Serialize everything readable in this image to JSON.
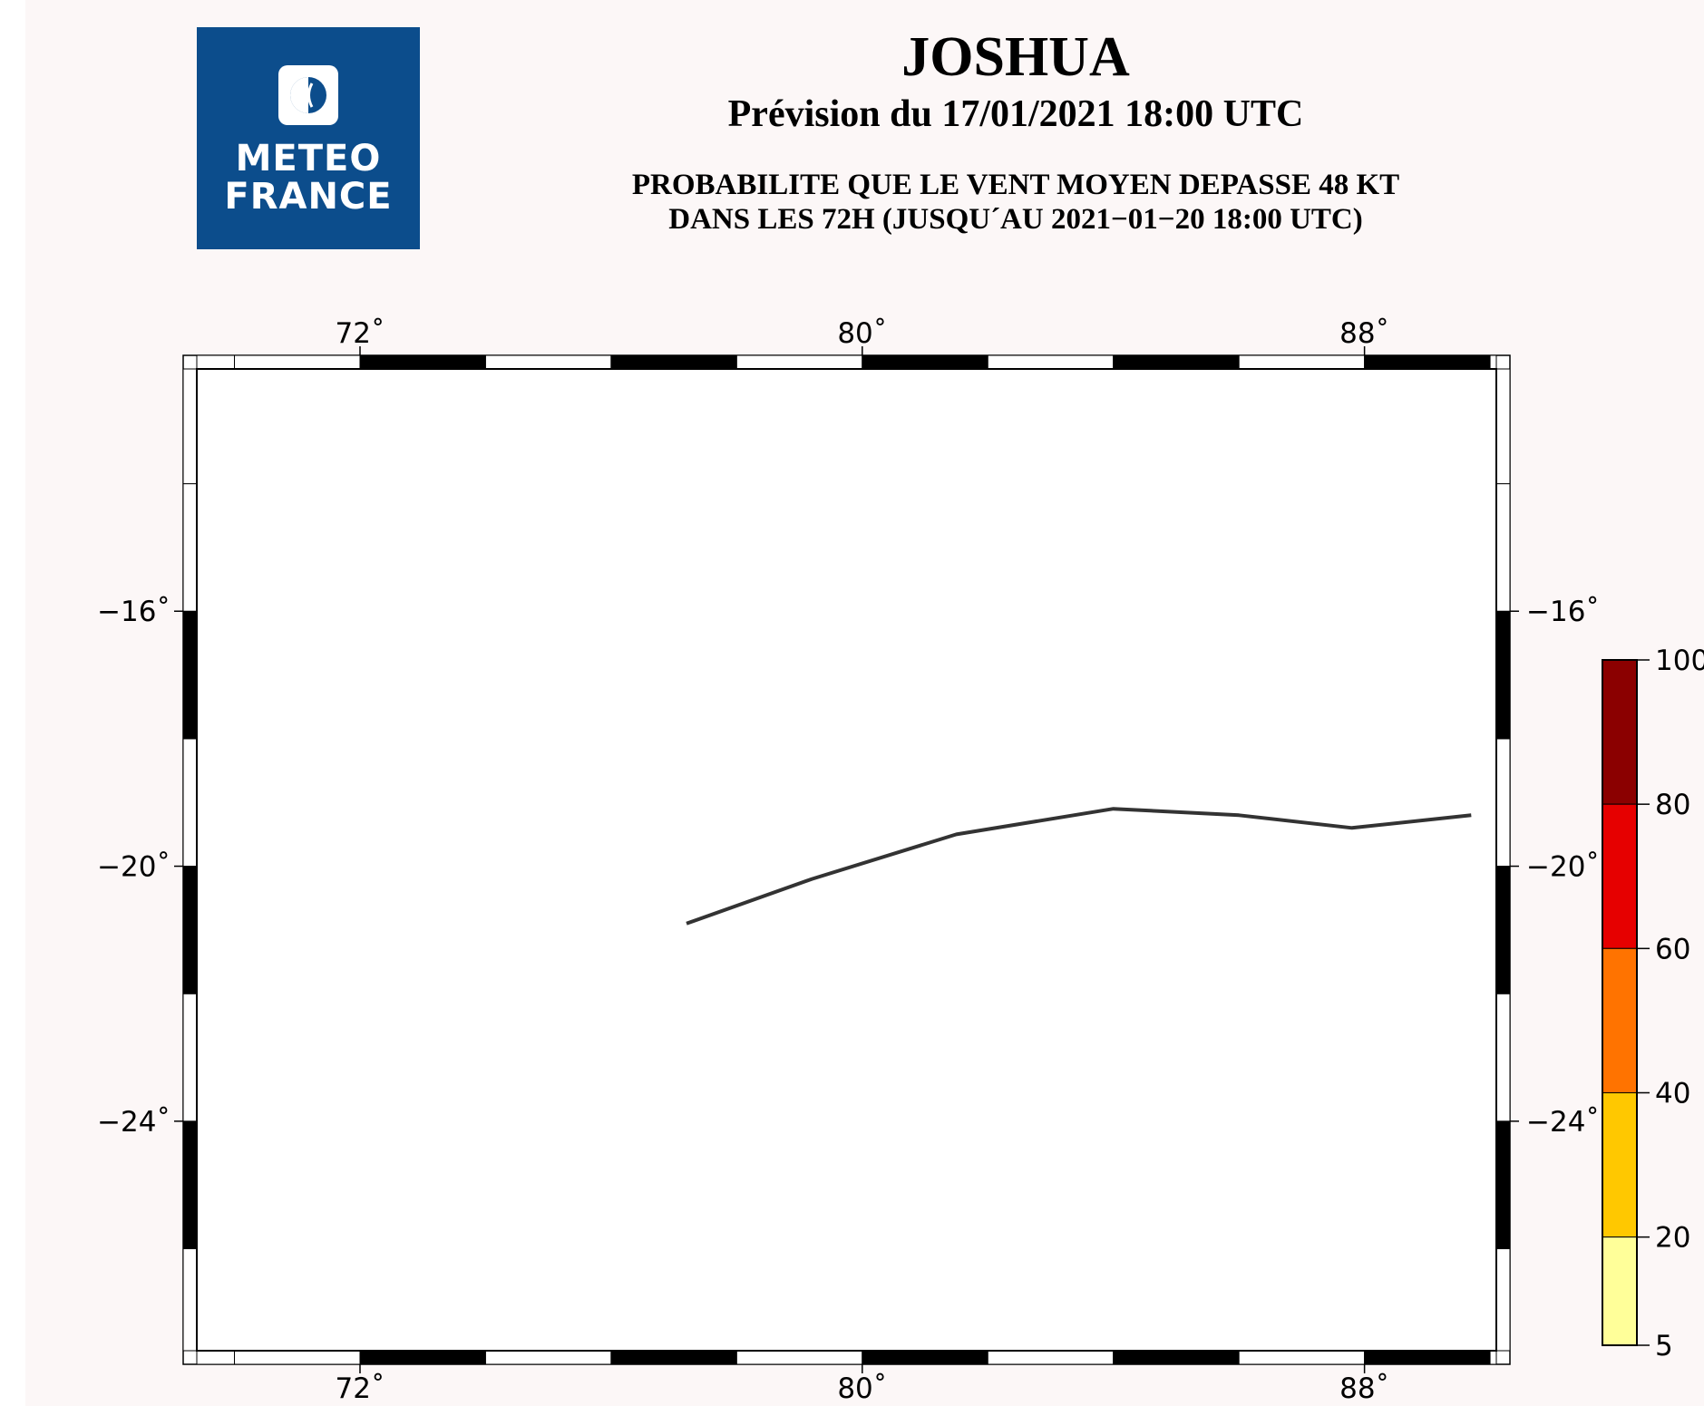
{
  "header": {
    "logo_lines": [
      "METEO",
      "FRANCE"
    ],
    "storm_name": "JOSHUA",
    "forecast_line": "Prévision du 17/01/2021 18:00 UTC",
    "description_lines": [
      "PROBABILITE QUE LE VENT MOYEN DEPASSE 48 KT",
      "DANS LES 72H (JUSQU´AU 2021−01−20 18:00 UTC)"
    ]
  },
  "map": {
    "lon_range": [
      69.4,
      90.1
    ],
    "lat_range": [
      -27.6,
      -12.2
    ],
    "lon_ticks": [
      "72˚",
      "80˚",
      "88˚"
    ],
    "lat_ticks": [
      "−16˚",
      "−20˚",
      "−24˚"
    ],
    "ocean_color": "#c4fcfd",
    "track_color": "#333333",
    "track": [
      [
        77.2,
        -20.9
      ],
      [
        79.2,
        -20.2
      ],
      [
        81.5,
        -19.5
      ],
      [
        84.0,
        -19.1
      ],
      [
        86.0,
        -19.2
      ],
      [
        87.8,
        -19.4
      ],
      [
        89.7,
        -19.2
      ]
    ]
  },
  "legend": {
    "tick_labels": [
      "100",
      "80",
      "60",
      "40",
      "20",
      "5"
    ],
    "bands": [
      {
        "from": 80,
        "to": 100,
        "color": "#8b0000"
      },
      {
        "from": 60,
        "to": 80,
        "color": "#e60000"
      },
      {
        "from": 40,
        "to": 60,
        "color": "#ff7300"
      },
      {
        "from": 20,
        "to": 40,
        "color": "#ffc800"
      },
      {
        "from": 5,
        "to": 20,
        "color": "#ffff99"
      }
    ]
  }
}
